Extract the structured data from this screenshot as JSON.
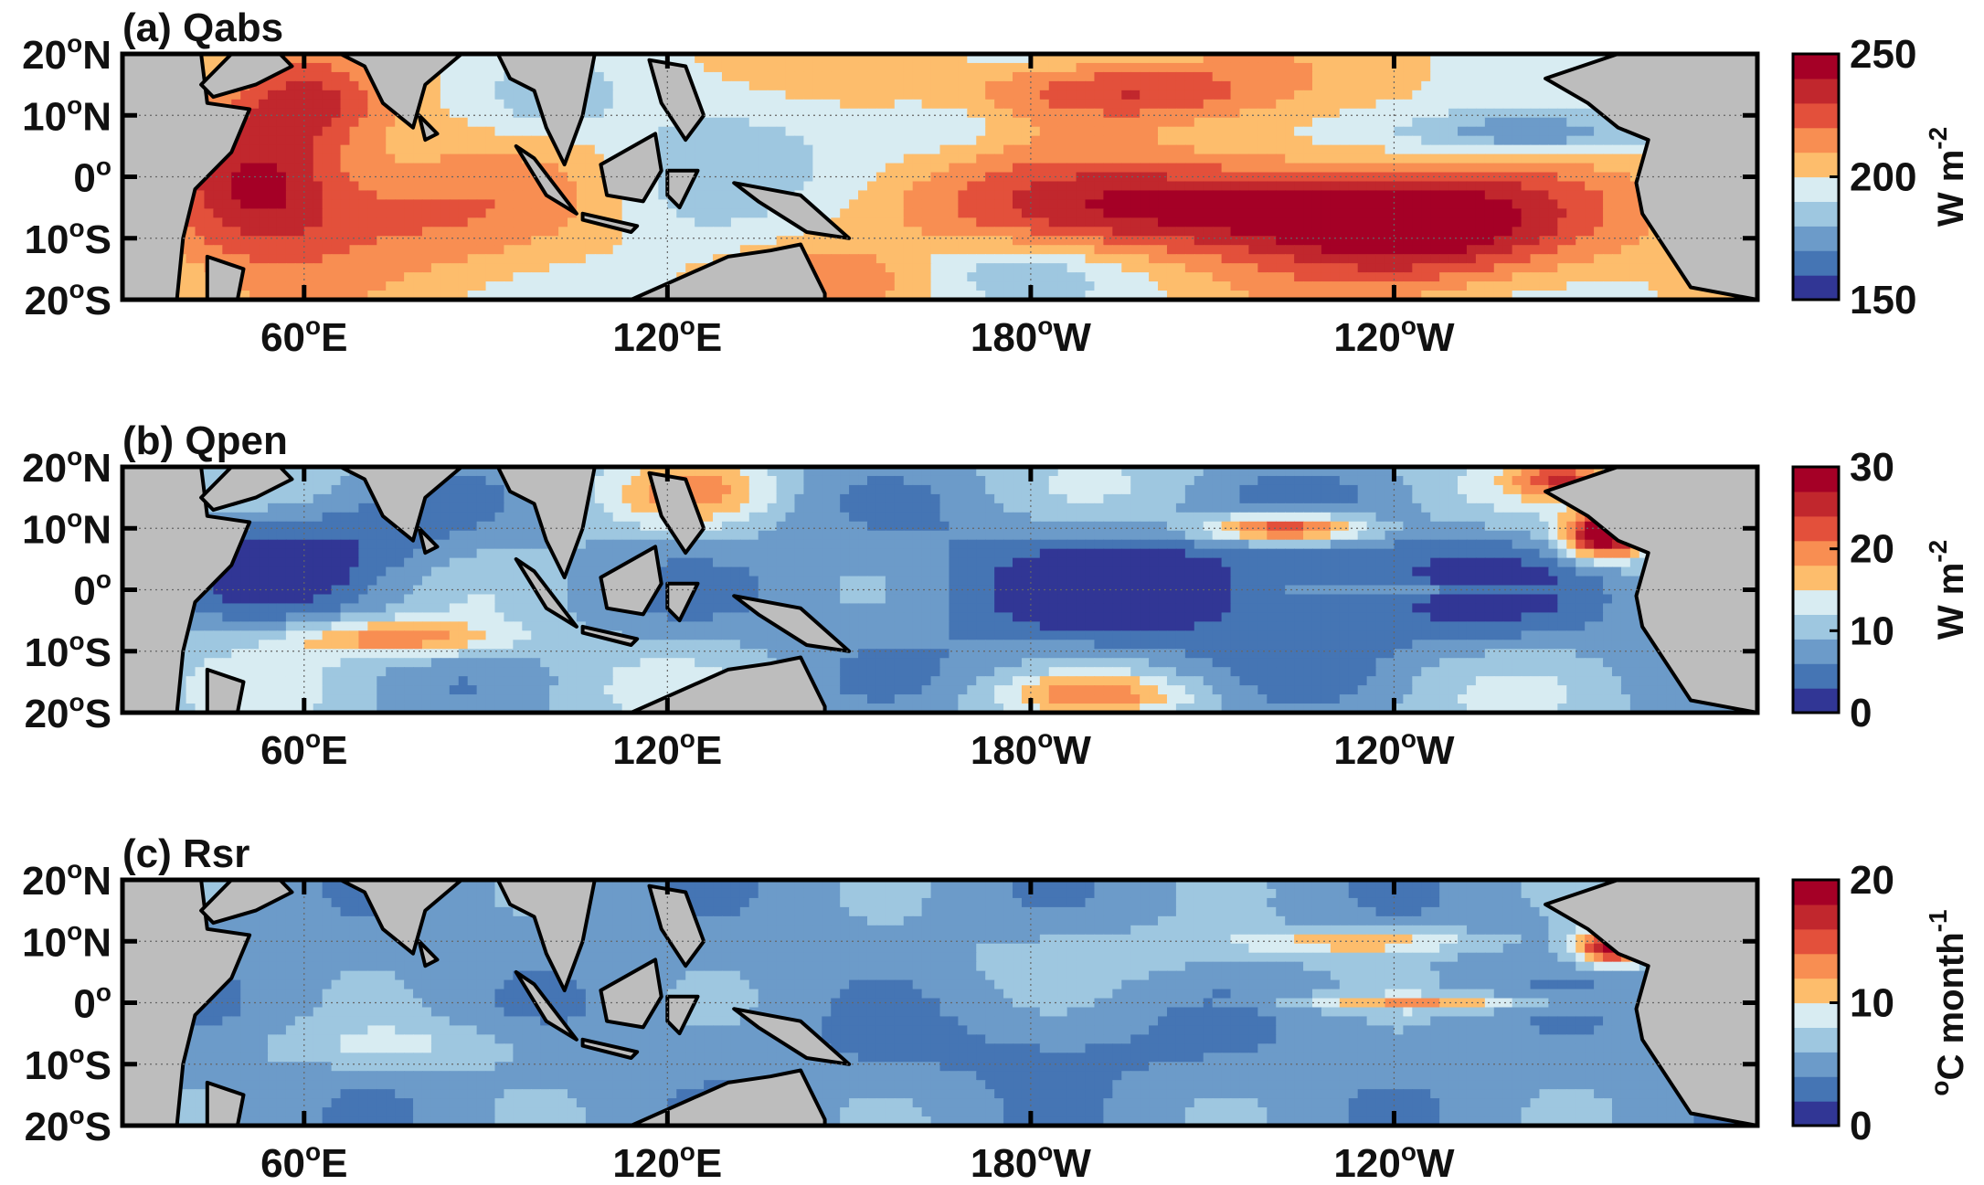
{
  "chart_data": [
    {
      "type": "heatmap",
      "title": "(a) Qabs",
      "x_ticks": [
        "60°E",
        "120°E",
        "180°W",
        "120°W"
      ],
      "y_ticks": [
        "20°N",
        "10°N",
        "0°",
        "10°S",
        "20°S"
      ],
      "lon_range": [
        30,
        300
      ],
      "lat_range": [
        -20,
        20
      ],
      "colorbar": {
        "label": "W m-2",
        "min": 150,
        "max": 250,
        "ticks": [
          "250",
          "200",
          "150"
        ],
        "levels": 10
      },
      "features": [
        {
          "name": "western Indian Ocean maximum",
          "lon": 50,
          "lat": 0,
          "value": 240
        },
        {
          "name": "equatorial central-east Pacific maximum",
          "lon": 215,
          "lat": -5,
          "value": 245
        },
        {
          "name": "northern subtropical Pacific band",
          "lon": 195,
          "lat": 14,
          "value": 235
        },
        {
          "name": "maritime continent minimum",
          "lon": 125,
          "lat": 0,
          "value": 190
        },
        {
          "name": "eastern Pacific ITCZ minimum",
          "lon": 260,
          "lat": 8,
          "value": 170
        }
      ]
    },
    {
      "type": "heatmap",
      "title": "(b) Qpen",
      "x_ticks": [
        "60°E",
        "120°E",
        "180°W",
        "120°W"
      ],
      "y_ticks": [
        "20°N",
        "10°N",
        "0°",
        "10°S",
        "20°S"
      ],
      "lon_range": [
        30,
        300
      ],
      "lat_range": [
        -20,
        20
      ],
      "colorbar": {
        "label": "W m-2",
        "min": 0,
        "max": 30,
        "ticks": [
          "30",
          "20",
          "10",
          "0"
        ],
        "levels": 10
      },
      "features": [
        {
          "name": "Costa Rica dome maximum",
          "lon": 275,
          "lat": 9,
          "value": 30
        },
        {
          "name": "northeast Pacific tongue",
          "lon": 222,
          "lat": 10,
          "value": 24
        },
        {
          "name": "southern Indian Ocean band",
          "lon": 75,
          "lat": -8,
          "value": 20
        },
        {
          "name": "southwest Pacific patch",
          "lon": 190,
          "lat": -17,
          "value": 18
        },
        {
          "name": "equatorial Pacific minimum",
          "lon": 200,
          "lat": 0,
          "value": 2
        }
      ]
    },
    {
      "type": "heatmap",
      "title": "(c) Rsr",
      "x_ticks": [
        "60°E",
        "120°E",
        "180°W",
        "120°W"
      ],
      "y_ticks": [
        "20°N",
        "10°N",
        "0°",
        "10°S",
        "20°S"
      ],
      "lon_range": [
        30,
        300
      ],
      "lat_range": [
        -20,
        20
      ],
      "colorbar": {
        "label": "°C month-1",
        "min": 0,
        "max": 20,
        "ticks": [
          "20",
          "10",
          "0"
        ],
        "levels": 10
      },
      "features": [
        {
          "name": "Costa Rica dome maximum",
          "lon": 275,
          "lat": 9,
          "value": 18
        },
        {
          "name": "eastern equatorial Pacific tongue",
          "lon": 250,
          "lat": 0,
          "value": 11
        },
        {
          "name": "southern Indian Ocean band",
          "lon": 75,
          "lat": -7,
          "value": 8
        },
        {
          "name": "open ocean background",
          "lon": 180,
          "lat": -10,
          "value": 5
        }
      ]
    }
  ],
  "colors": [
    "#313695",
    "#4575b4",
    "#6c9bc9",
    "#9ec7e0",
    "#d8ecf2",
    "#fee59a",
    "#fdbd6c",
    "#f88e52",
    "#e3503b",
    "#c1272d",
    "#a50026"
  ],
  "land_color": "#bdbdbd"
}
